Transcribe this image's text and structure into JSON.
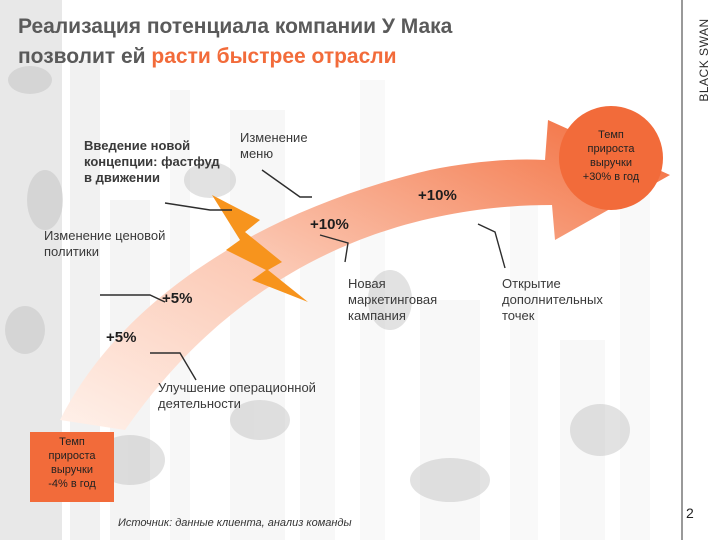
{
  "title": {
    "line1": "Реализация потенциала компании У Мака",
    "line2_prefix": "позволит ей ",
    "line2_accent": "расти быстрее отрасли"
  },
  "brand": "BLACK SWAN",
  "colors": {
    "accent": "#f26b3a",
    "arrow_light": "#ffe3d8",
    "arrow_dark": "#f4805a",
    "bolt": "#f7941d"
  },
  "start_box": {
    "line1": "Темп",
    "line2": "прироста",
    "line3": "выручки",
    "line4": "-4% в год"
  },
  "end_box": {
    "line1": "Темп",
    "line2": "прироста",
    "line3": "выручки",
    "line4": "+30% в год"
  },
  "initiatives": {
    "operations": {
      "line1": "Улучшение операционной",
      "line2": "деятельности",
      "pct": "+5%"
    },
    "pricing": {
      "line1": "Изменение ценовой",
      "line2": "политики",
      "pct": "+5%"
    },
    "fastfood": {
      "line1": "Введение новой",
      "line2": "концепции: фастфуд",
      "line3": "в движении",
      "pct": "+10%"
    },
    "menu": {
      "line1": "Изменение",
      "line2": "меню"
    },
    "marketing": {
      "line1": "Новая",
      "line2": "маркетинговая",
      "line3": "кампания",
      "pct": "+10%"
    },
    "points": {
      "line1": "Открытие",
      "line2": "дополнительных",
      "line3": "точек"
    }
  },
  "source": "Источник: данные клиента, анализ команды",
  "page_number": "2"
}
